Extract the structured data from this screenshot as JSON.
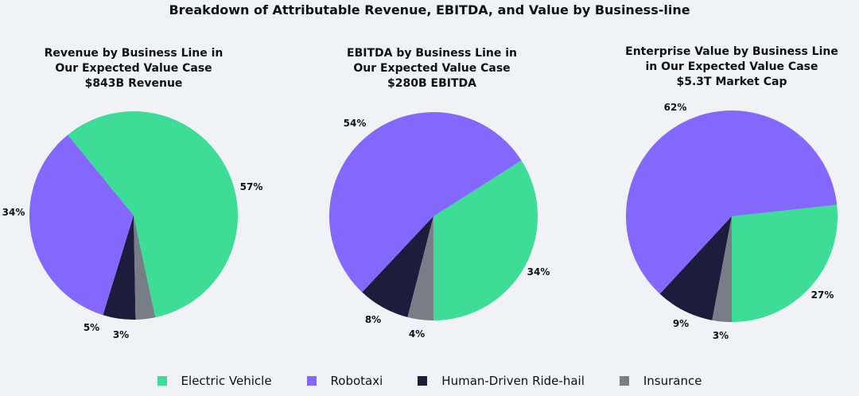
{
  "title": "Breakdown of Attributable Revenue, EBITDA, and Value by Business-line",
  "colors": {
    "Electric Vehicle": "#3ddc97",
    "Robotaxi": "#8467fc",
    "Human-Driven Ride-hail": "#1c1c3c",
    "Insurance": "#787e87"
  },
  "legend": [
    "Electric Vehicle",
    "Robotaxi",
    "Human-Driven Ride-hail",
    "Insurance"
  ],
  "chart_data": [
    {
      "type": "pie",
      "title_lines": [
        "Revenue by Business Line in",
        "Our Expected Value Case",
        "$843B Revenue"
      ],
      "slices": [
        {
          "name": "Electric Vehicle",
          "value": 57,
          "label": "57%"
        },
        {
          "name": "Robotaxi",
          "value": 34,
          "label": "34%"
        },
        {
          "name": "Human-Driven Ride-hail",
          "value": 5,
          "label": "5%"
        },
        {
          "name": "Insurance",
          "value": 3,
          "label": "3%"
        }
      ]
    },
    {
      "type": "pie",
      "title_lines": [
        "EBITDA by Business Line in",
        "Our Expected Value Case",
        "$280B EBITDA"
      ],
      "slices": [
        {
          "name": "Electric Vehicle",
          "value": 34,
          "label": "34%"
        },
        {
          "name": "Robotaxi",
          "value": 54,
          "label": "54%"
        },
        {
          "name": "Human-Driven Ride-hail",
          "value": 8,
          "label": "8%"
        },
        {
          "name": "Insurance",
          "value": 4,
          "label": "4%"
        }
      ]
    },
    {
      "type": "pie",
      "title_lines": [
        "Enterprise Value by Business Line",
        "in Our Expected Value Case",
        "$5.3T Market Cap"
      ],
      "slices": [
        {
          "name": "Electric Vehicle",
          "value": 27,
          "label": "27%"
        },
        {
          "name": "Robotaxi",
          "value": 62,
          "label": "62%"
        },
        {
          "name": "Human-Driven Ride-hail",
          "value": 9,
          "label": "9%"
        },
        {
          "name": "Insurance",
          "value": 3,
          "label": "3%"
        }
      ]
    }
  ]
}
